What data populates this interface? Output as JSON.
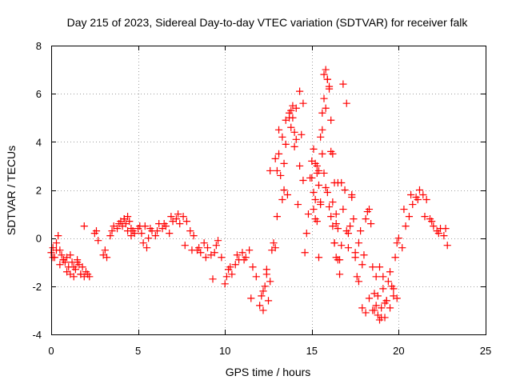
{
  "chart_data": {
    "type": "scatter",
    "title": "Day 215 of 2023, Sidereal Day-to-day VTEC variation (SDTVAR) for receiver falk",
    "xlabel": "GPS time / hours",
    "ylabel": "SDTVAR / TECUs",
    "xlim": [
      0,
      25
    ],
    "ylim": [
      -4,
      8
    ],
    "xticks": [
      0,
      5,
      10,
      15,
      20,
      25
    ],
    "yticks": [
      -4,
      -2,
      0,
      2,
      4,
      6,
      8
    ],
    "grid": true,
    "marker": "+",
    "color": "#ff0000",
    "series": [
      {
        "name": "SDTVAR",
        "x": [
          0.0,
          0.1,
          0.2,
          0.3,
          0.4,
          0.5,
          0.6,
          0.7,
          0.8,
          0.9,
          1.0,
          1.1,
          1.2,
          1.3,
          1.4,
          1.5,
          1.6,
          1.7,
          1.8,
          1.9,
          2.0,
          2.1,
          2.2,
          2.5,
          2.6,
          2.7,
          3.0,
          3.1,
          3.2,
          3.4,
          3.5,
          3.6,
          3.8,
          3.9,
          4.0,
          4.1,
          4.2,
          4.3,
          4.4,
          4.5,
          4.6,
          4.7,
          4.8,
          5.0,
          5.2,
          5.4,
          5.5,
          5.6,
          5.8,
          6.0,
          6.2,
          6.4,
          6.6,
          6.8,
          7.0,
          7.2,
          7.4,
          7.6,
          7.8,
          8.0,
          8.2,
          8.4,
          8.6,
          8.8,
          9.0,
          9.2,
          9.4,
          9.5,
          9.6,
          9.8,
          10.0,
          10.1,
          10.2,
          10.4,
          10.6,
          10.8,
          11.0,
          11.2,
          11.4,
          11.6,
          11.8,
          12.0,
          12.1,
          12.2,
          12.3,
          12.4,
          12.5,
          12.6,
          12.7,
          12.8,
          12.9,
          13.0,
          13.1,
          13.2,
          13.3,
          13.4,
          13.5,
          13.6,
          13.7,
          13.8,
          13.9,
          14.0,
          14.1,
          14.2,
          14.3,
          14.4,
          14.5,
          14.6,
          14.7,
          14.8,
          14.9,
          15.0,
          15.1,
          15.2,
          15.3,
          15.4,
          15.5,
          15.6,
          15.7,
          15.8,
          15.9,
          16.0,
          16.1,
          16.2,
          16.3,
          16.4,
          16.5,
          16.6,
          16.7,
          16.8,
          16.9,
          17.0,
          17.1,
          17.2,
          17.3,
          17.4,
          17.5,
          17.6,
          17.7,
          17.8,
          17.9,
          18.0,
          18.1,
          18.2,
          18.3,
          18.4,
          18.5,
          18.6,
          18.7,
          18.8,
          18.9,
          19.0,
          19.1,
          19.2,
          19.3,
          19.4,
          19.5,
          19.6,
          19.7,
          19.8,
          19.9,
          20.0,
          20.2,
          20.4,
          20.6,
          20.8,
          21.0,
          21.2,
          21.4,
          21.6,
          21.8,
          22.0,
          22.2,
          22.4,
          22.6,
          22.8,
          0.1,
          0.3,
          0.5,
          0.7,
          0.9,
          1.1,
          1.3,
          1.5,
          1.7,
          1.9,
          4.2,
          4.4,
          4.6,
          5.1,
          5.3,
          5.7,
          6.1,
          6.5,
          6.9,
          7.3,
          7.7,
          8.1,
          8.5,
          8.9,
          9.3,
          10.3,
          10.7,
          11.1,
          11.5,
          12.2,
          12.4,
          12.6,
          13.1,
          13.3,
          13.5,
          13.7,
          14.1,
          14.3,
          14.5,
          15.1,
          15.2,
          15.3,
          15.4,
          15.5,
          15.6,
          15.7,
          15.8,
          15.9,
          16.0,
          16.1,
          16.2,
          16.3,
          16.4,
          16.5,
          16.6,
          16.7,
          17.1,
          17.3,
          17.5,
          17.7,
          17.9,
          18.1,
          18.3,
          18.5,
          18.7,
          18.9,
          19.1,
          19.3,
          19.5,
          19.7,
          19.9,
          20.3,
          20.7,
          21.1,
          21.5,
          21.9,
          22.3,
          22.7,
          15.2,
          15.4,
          15.6,
          15.8,
          16.0,
          16.2,
          16.4,
          15.3,
          15.5,
          15.7,
          15.9,
          16.1,
          16.3,
          13.9,
          14.0,
          13.8,
          12.9,
          13.0,
          13.4,
          15.0,
          15.1,
          16.5,
          16.8,
          17.0,
          18.6,
          18.8,
          19.0,
          19.2
        ],
        "y": [
          -0.6,
          -0.4,
          -0.8,
          -0.2,
          0.1,
          -0.5,
          -0.7,
          -0.9,
          -1.0,
          -0.8,
          -1.2,
          -1.5,
          -1.0,
          -1.6,
          -1.3,
          -0.9,
          -1.1,
          -1.5,
          -1.2,
          -1.6,
          -1.4,
          -1.5,
          -1.6,
          0.2,
          0.3,
          -0.1,
          -0.7,
          -0.5,
          -0.8,
          0.1,
          0.3,
          0.5,
          0.4,
          0.6,
          0.7,
          0.5,
          0.8,
          0.6,
          0.9,
          0.7,
          0.4,
          0.3,
          0.2,
          0.4,
          0.2,
          0.5,
          -0.4,
          0.0,
          0.3,
          0.1,
          0.6,
          0.4,
          0.5,
          0.2,
          0.7,
          0.8,
          0.6,
          0.9,
          0.7,
          0.3,
          0.1,
          -0.5,
          -0.6,
          -0.2,
          -0.4,
          -0.7,
          -0.6,
          -0.3,
          -0.1,
          -0.8,
          -1.9,
          -1.6,
          -1.3,
          -1.5,
          -1.1,
          -0.9,
          -0.6,
          -0.8,
          -0.5,
          -1.2,
          -1.6,
          -2.8,
          -2.4,
          -3.0,
          -2.0,
          -1.3,
          -2.6,
          -1.8,
          -0.5,
          -0.2,
          -0.4,
          0.9,
          3.5,
          2.6,
          4.2,
          3.1,
          4.9,
          1.8,
          5.2,
          4.6,
          5.5,
          3.8,
          5.4,
          1.4,
          6.1,
          4.3,
          5.6,
          -0.6,
          0.2,
          1.0,
          2.5,
          3.2,
          1.2,
          0.8,
          3.0,
          -0.8,
          4.2,
          5.2,
          6.8,
          7.0,
          6.6,
          6.2,
          3.6,
          1.5,
          -0.2,
          0.6,
          -0.9,
          -1.5,
          -0.3,
          1.2,
          2.0,
          0.3,
          -0.4,
          0.5,
          1.8,
          0.8,
          -0.6,
          -1.6,
          -0.2,
          0.3,
          -1.1,
          -0.7,
          0.8,
          1.1,
          1.2,
          0.6,
          -1.2,
          -2.3,
          -2.8,
          -3.2,
          -3.4,
          -2.9,
          -1.6,
          -3.3,
          -2.6,
          -1.8,
          -2.9,
          -2.0,
          -2.4,
          -0.8,
          -0.2,
          0.0,
          -0.4,
          0.5,
          0.9,
          1.4,
          1.7,
          2.0,
          1.8,
          1.6,
          0.8,
          0.5,
          0.3,
          0.4,
          0.1,
          -0.3,
          -0.8,
          -0.5,
          -1.1,
          -0.9,
          -1.4,
          -0.7,
          -1.2,
          -1.0,
          -1.5,
          0.5,
          0.8,
          0.3,
          0.1,
          0.5,
          -0.2,
          0.4,
          0.3,
          0.6,
          0.9,
          1.0,
          -0.3,
          -0.5,
          -0.4,
          -0.8,
          -1.7,
          -1.2,
          -0.7,
          -0.9,
          -2.5,
          -2.2,
          -1.5,
          2.8,
          4.5,
          1.6,
          3.9,
          5.0,
          4.1,
          3.0,
          2.4,
          1.9,
          3.1,
          2.7,
          2.2,
          1.5,
          4.5,
          5.8,
          5.4,
          6.6,
          6.3,
          4.9,
          3.5,
          2.3,
          1.0,
          0.4,
          -0.9,
          2.3,
          0.2,
          1.7,
          -0.8,
          -1.8,
          -2.9,
          -3.1,
          -2.5,
          -3.0,
          -1.6,
          -1.2,
          -2.1,
          -2.6,
          -1.4,
          -2.1,
          -2.5,
          1.2,
          1.8,
          1.6,
          0.9,
          0.7,
          0.2,
          0.4,
          1.6,
          2.8,
          3.5,
          2.1,
          1.3,
          0.5,
          -0.8,
          0.7,
          1.4,
          2.7,
          1.9,
          0.9,
          -0.2,
          5.0,
          4.4,
          5.3,
          3.3,
          2.8,
          2.0,
          2.5,
          3.7,
          2.3,
          6.4,
          5.6,
          -3.0,
          -2.4,
          -3.3,
          -2.7
        ]
      }
    ]
  }
}
